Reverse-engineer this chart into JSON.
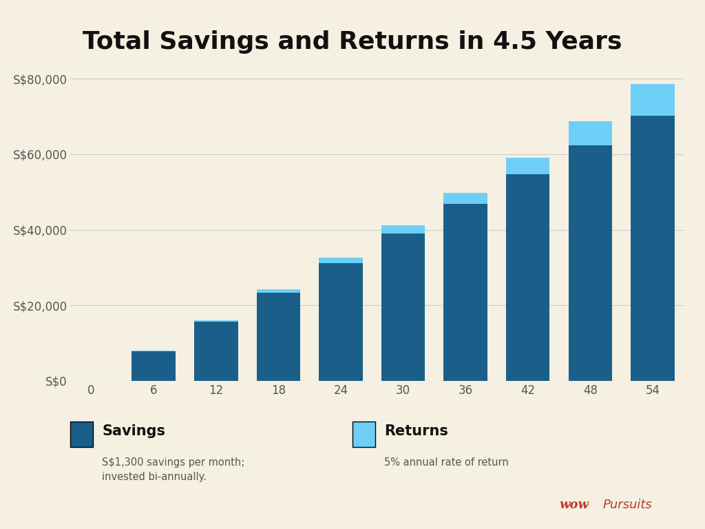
{
  "title": "Total Savings and Returns in 4.5 Years",
  "background_color": "#f5f0e1",
  "x_ticks": [
    0,
    6,
    12,
    18,
    24,
    30,
    36,
    42,
    48,
    54
  ],
  "bar_positions": [
    6,
    12,
    18,
    24,
    30,
    36,
    42,
    48,
    54
  ],
  "savings": [
    7800,
    15600,
    23400,
    31200,
    39000,
    46800,
    54600,
    62400,
    70200
  ],
  "returns": [
    200,
    500,
    900,
    1500,
    2100,
    3000,
    4500,
    6300,
    8400
  ],
  "savings_color": "#1a5f8a",
  "returns_color": "#6dcff6",
  "ylim": [
    0,
    84000
  ],
  "yticks": [
    0,
    20000,
    40000,
    60000,
    80000
  ],
  "ytick_labels": [
    "S$0",
    "S$20,000",
    "S$40,000",
    "S$60,000",
    "S$80,000"
  ],
  "bar_width": 4.2,
  "grid_color": "#cccccc",
  "title_fontsize": 26,
  "tick_fontsize": 12,
  "legend_savings_bold": "Savings",
  "legend_savings_sub": "S$1,300 savings per month;\ninvested bi-annually.",
  "legend_returns_bold": "Returns",
  "legend_returns_sub": "5% annual rate of return",
  "watermark_pursuits": "Pursuits",
  "watermark_wow": "wow"
}
